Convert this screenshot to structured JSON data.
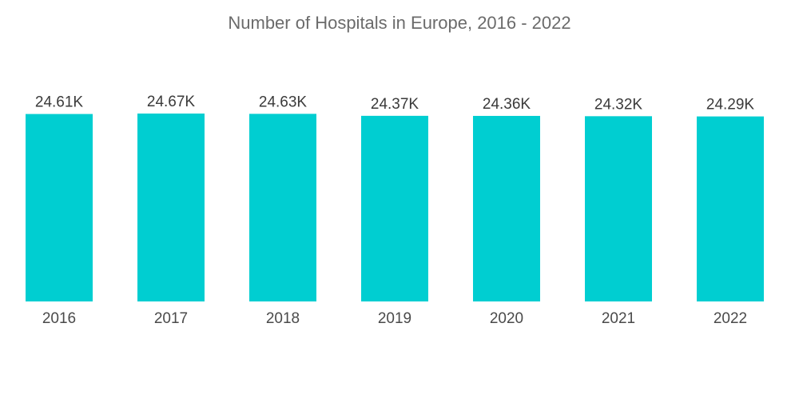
{
  "colors": {
    "bar": "#00CED1",
    "title": "#6b6b6b",
    "label": "#3a3a3a"
  },
  "chart_data": {
    "type": "bar",
    "title": "Number of Hospitals in Europe, 2016 - 2022",
    "xlabel": "",
    "ylabel": "",
    "categories": [
      "2016",
      "2017",
      "2018",
      "2019",
      "2020",
      "2021",
      "2022"
    ],
    "values": [
      24.61,
      24.67,
      24.63,
      24.37,
      24.36,
      24.32,
      24.29
    ],
    "value_labels": [
      "24.61K",
      "24.67K",
      "24.63K",
      "24.37K",
      "24.36K",
      "24.32K",
      "24.29K"
    ],
    "unit": "K",
    "ylim": [
      0,
      24.67
    ],
    "grid": false,
    "legend": "none"
  }
}
